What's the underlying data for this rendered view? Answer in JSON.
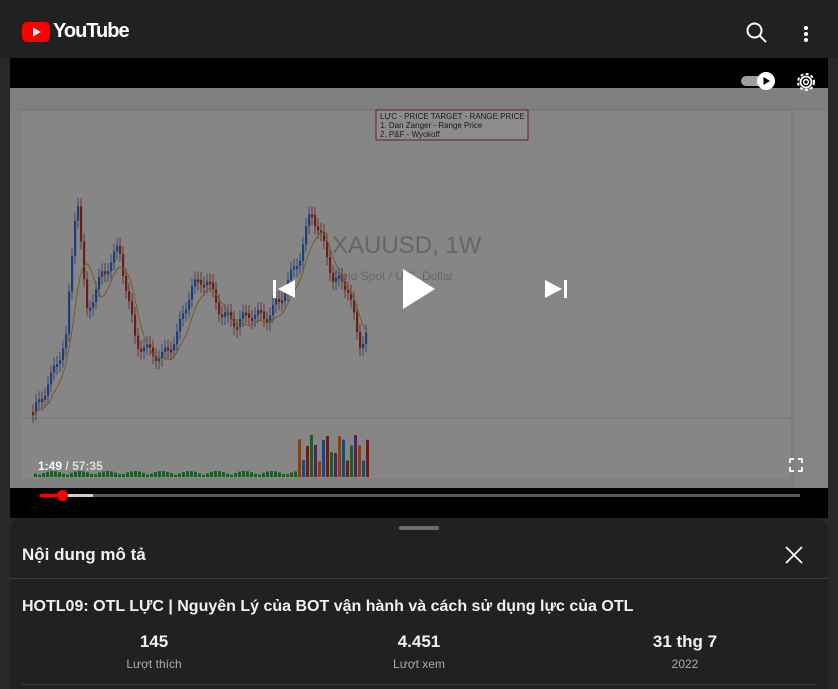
{
  "header": {
    "brand": "YouTube",
    "brand_color": "#ff0000",
    "icons": [
      "youtube-logo-icon",
      "search-icon",
      "more-vert-icon"
    ]
  },
  "player": {
    "current_time": "1:49",
    "separator": "/",
    "duration": "57:35",
    "progress": 0.03,
    "buffered": 0.07,
    "progress_color": "#ff0000",
    "autoplay_on": true,
    "icons": [
      "autoplay-toggle-icon",
      "settings-icon",
      "previous-icon",
      "play-icon",
      "next-icon",
      "fullscreen-icon"
    ],
    "frame": {
      "symbol_watermark": "XAUUSD, 1W",
      "symbol_subtitle": "Gold Spot / U.S. Dollar",
      "annotation": {
        "heading": "LỰC - PRICE TARGET - RANGE PRICE",
        "line1": "1. Dan Zanger - Range Price",
        "line2": "2. P&F - Wyckoff"
      }
    }
  },
  "description": {
    "title": "Nội dung mô tả",
    "video_title": "HOTL09: OTL LỰC | Nguyên Lý của BOT vận hành và cách sử dụng lực của OTL",
    "stats": {
      "likes": {
        "value": "145",
        "label": "Lượt thích"
      },
      "views": {
        "value": "4.451",
        "label": "Lượt xem"
      },
      "date": {
        "value": "31 thg 7",
        "label": "2022"
      }
    },
    "icons": [
      "close-icon"
    ]
  }
}
